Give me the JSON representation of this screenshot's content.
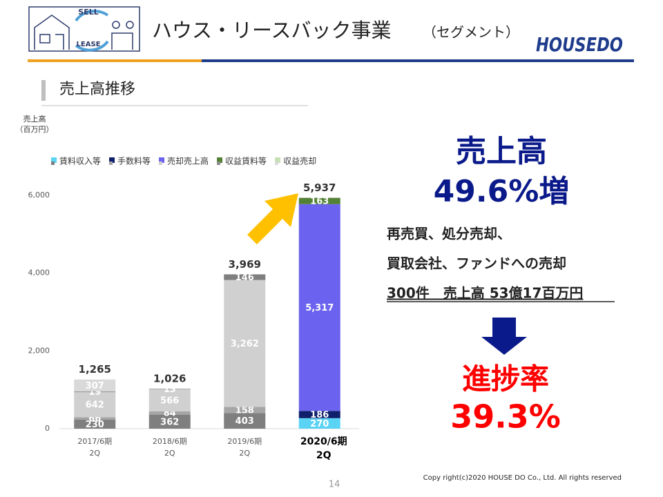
{
  "header": {
    "title": "ハウス・リースバック事業",
    "subtitle": "（セグメント）",
    "logo": "HOUSEDO",
    "icon_texts": [
      "SELL",
      "LEASE"
    ]
  },
  "section_title": "売上高推移",
  "chart_data": {
    "type": "stacked_bar",
    "y_label": [
      "売上高",
      "（百万円）"
    ],
    "categories": [
      [
        "2017/6期",
        "2Q"
      ],
      [
        "2018/6期",
        "2Q"
      ],
      [
        "2019/6期",
        "2Q"
      ],
      [
        "2020/6期",
        "2Q"
      ]
    ],
    "series": [
      {
        "name": "賃料収入等",
        "color": "#5bd3f5",
        "colors": [
          "#7f7f7f",
          "#7f7f7f",
          "#7f7f7f",
          "#5bd3f5"
        ],
        "values": [
          230,
          362,
          403,
          270
        ]
      },
      {
        "name": "手数料等",
        "color": "#0f1f6b",
        "colors": [
          "#a6a6a6",
          "#a6a6a6",
          "#a6a6a6",
          "#0f1f6b"
        ],
        "values": [
          66,
          84,
          158,
          186
        ]
      },
      {
        "name": "売却売上高",
        "color": "#6b63ef",
        "colors": [
          "#d0d0d0",
          "#d0d0d0",
          "#d0d0d0",
          "#6b63ef"
        ],
        "values": [
          642,
          566,
          3262,
          5317
        ],
        "value_labels": [
          "642",
          "566",
          "3,262",
          "5,317"
        ]
      },
      {
        "name": "収益賃料等",
        "color": "#548235",
        "colors": [
          "#8c8c8c",
          "#8c8c8c",
          "#7f7f7f",
          "#548235"
        ],
        "values": [
          19,
          13,
          146,
          163
        ]
      },
      {
        "name": "収益売却",
        "color": "#c5e0b4",
        "colors": [
          "#d9d9d9",
          "#d9d9d9",
          "#d9d9d9",
          "#c5e0b4"
        ],
        "values": [
          307,
          null,
          null,
          null
        ]
      }
    ],
    "totals": [
      1265,
      1026,
      3969,
      5937
    ],
    "total_labels": [
      "1,265",
      "1,026",
      "3,969",
      "5,937"
    ],
    "ylim": [
      0,
      6000
    ],
    "yticks": [
      0,
      {
        "value": 2000,
        "label": "2,000"
      },
      {
        "value": 4000,
        "label": "4,000"
      },
      {
        "value": 6000,
        "label": "6,000"
      }
    ]
  },
  "highlight": {
    "heading": "売上高",
    "growth": "49.6%増",
    "lines": [
      "再売買、処分売却、",
      "買取会社、ファンドへの売却",
      "300件　売上高 53億17百万円"
    ],
    "progress_label": "進捗率",
    "progress": "39.3%"
  },
  "footer": {
    "page": "14",
    "copyright": "Copy right(c)2020  HOUSE DO Co., Ltd. All rights reserved"
  }
}
